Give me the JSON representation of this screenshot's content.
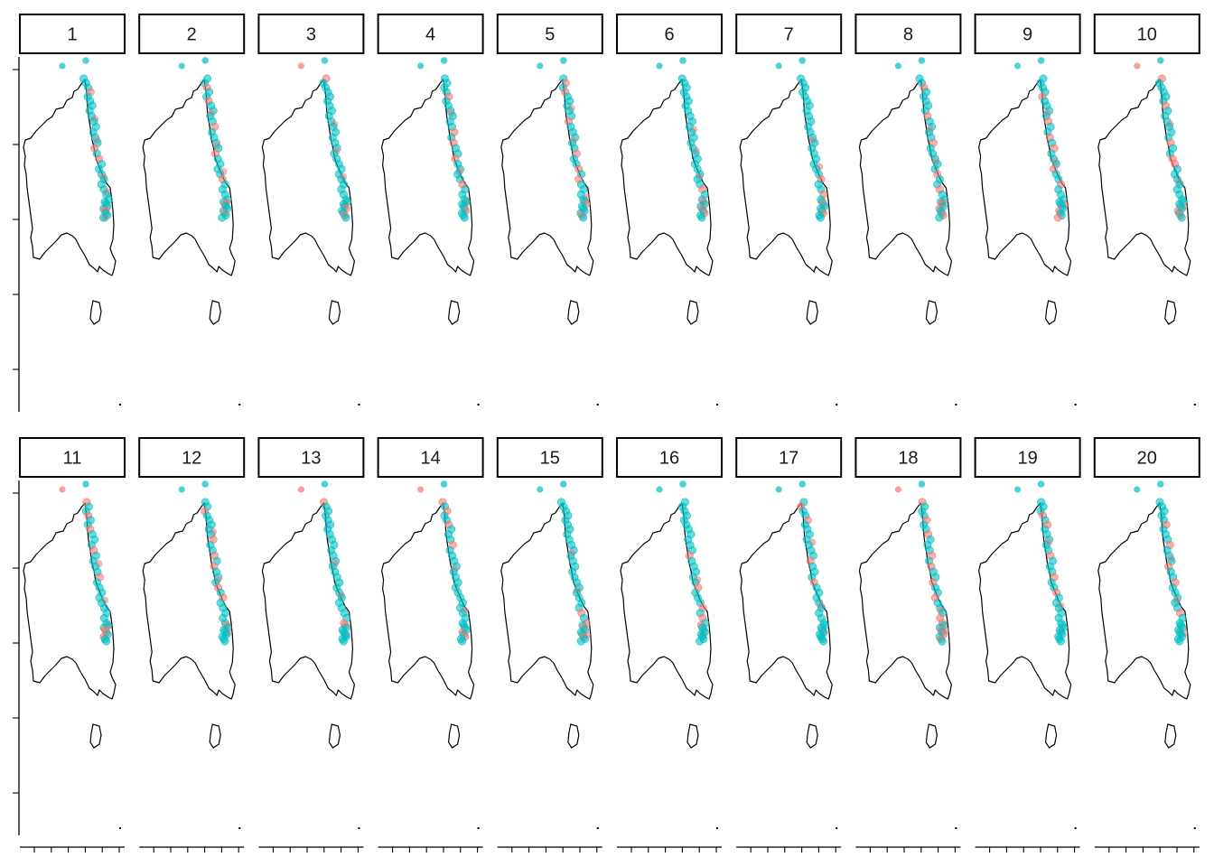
{
  "facet_labels": [
    "1",
    "2",
    "3",
    "4",
    "5",
    "6",
    "7",
    "8",
    "9",
    "10",
    "11",
    "12",
    "13",
    "14",
    "15",
    "16",
    "17",
    "18",
    "19",
    "20"
  ],
  "layout": {
    "rows": 2,
    "columns": 10
  },
  "colors": {
    "group_a": "#F8766D",
    "group_b": "#00BFC4",
    "outline": "#000000",
    "strip_fill": "#ffffff",
    "strip_border": "#000000"
  },
  "map": {
    "region": "Australia",
    "points_along": "east coast, Cape York to New South Wales"
  },
  "facet_points": [
    {
      "a": [
        3,
        14,
        16,
        29
      ],
      "ab": [
        8,
        12,
        19,
        22,
        27,
        31
      ]
    },
    {
      "a": [
        2,
        5,
        10,
        15,
        20,
        26,
        30
      ],
      "ab": [
        7,
        13,
        18,
        24
      ]
    },
    {
      "a": [
        0,
        28,
        31
      ],
      "ab": [
        9,
        14,
        19,
        25
      ]
    },
    {
      "a": [
        4,
        11,
        13,
        16,
        21,
        29
      ],
      "ab": [
        7,
        18,
        24
      ]
    },
    {
      "a": [
        1,
        3,
        9,
        15,
        18,
        20,
        26,
        31
      ],
      "ab": [
        6,
        12,
        23
      ]
    },
    {
      "a": [
        22,
        25,
        28,
        30
      ],
      "ab": [
        10,
        14,
        19
      ]
    },
    {
      "a": [
        20,
        23,
        26,
        30
      ],
      "ab": [
        12,
        17
      ]
    },
    {
      "a": [
        2,
        8,
        13,
        19,
        22,
        26,
        28,
        31
      ],
      "ab": [
        10,
        16,
        24
      ]
    },
    {
      "a": [
        4,
        9,
        12,
        14,
        18,
        21,
        29,
        32
      ],
      "ab": [
        7,
        16,
        25
      ]
    },
    {
      "a": [
        0,
        6,
        13,
        16,
        17,
        29,
        31
      ],
      "ab": [
        9,
        20,
        26
      ]
    },
    {
      "a": [
        0,
        3,
        6,
        10,
        15,
        27,
        28,
        30
      ],
      "ab": [
        12,
        19,
        24
      ]
    },
    {
      "a": [
        2,
        8,
        11,
        13,
        17,
        19,
        25
      ],
      "ab": [
        6,
        15,
        27
      ]
    },
    {
      "a": [
        0,
        24,
        25
      ],
      "ab": [
        12,
        18,
        28
      ]
    },
    {
      "a": [
        0,
        2,
        5,
        9,
        28,
        30
      ],
      "ab": [
        13,
        21
      ]
    },
    {
      "a": [
        22,
        24,
        26,
        30
      ],
      "ab": [
        10,
        17,
        28
      ]
    },
    {
      "a": [
        11,
        17,
        21,
        23,
        25
      ],
      "ab": [
        15,
        28
      ]
    },
    {
      "a": [
        1,
        4,
        12,
        16
      ],
      "ab": [
        8,
        20,
        27
      ]
    },
    {
      "a": [
        0,
        4,
        7,
        11,
        13,
        16,
        19,
        23,
        24,
        27,
        29,
        31
      ],
      "ab": [
        21,
        26
      ]
    },
    {
      "a": [
        3,
        5,
        11,
        15,
        18
      ],
      "ab": [
        8,
        20,
        26
      ]
    },
    {
      "a": [
        5,
        9,
        13,
        16,
        22
      ],
      "ab": [
        11,
        19,
        27
      ]
    }
  ]
}
